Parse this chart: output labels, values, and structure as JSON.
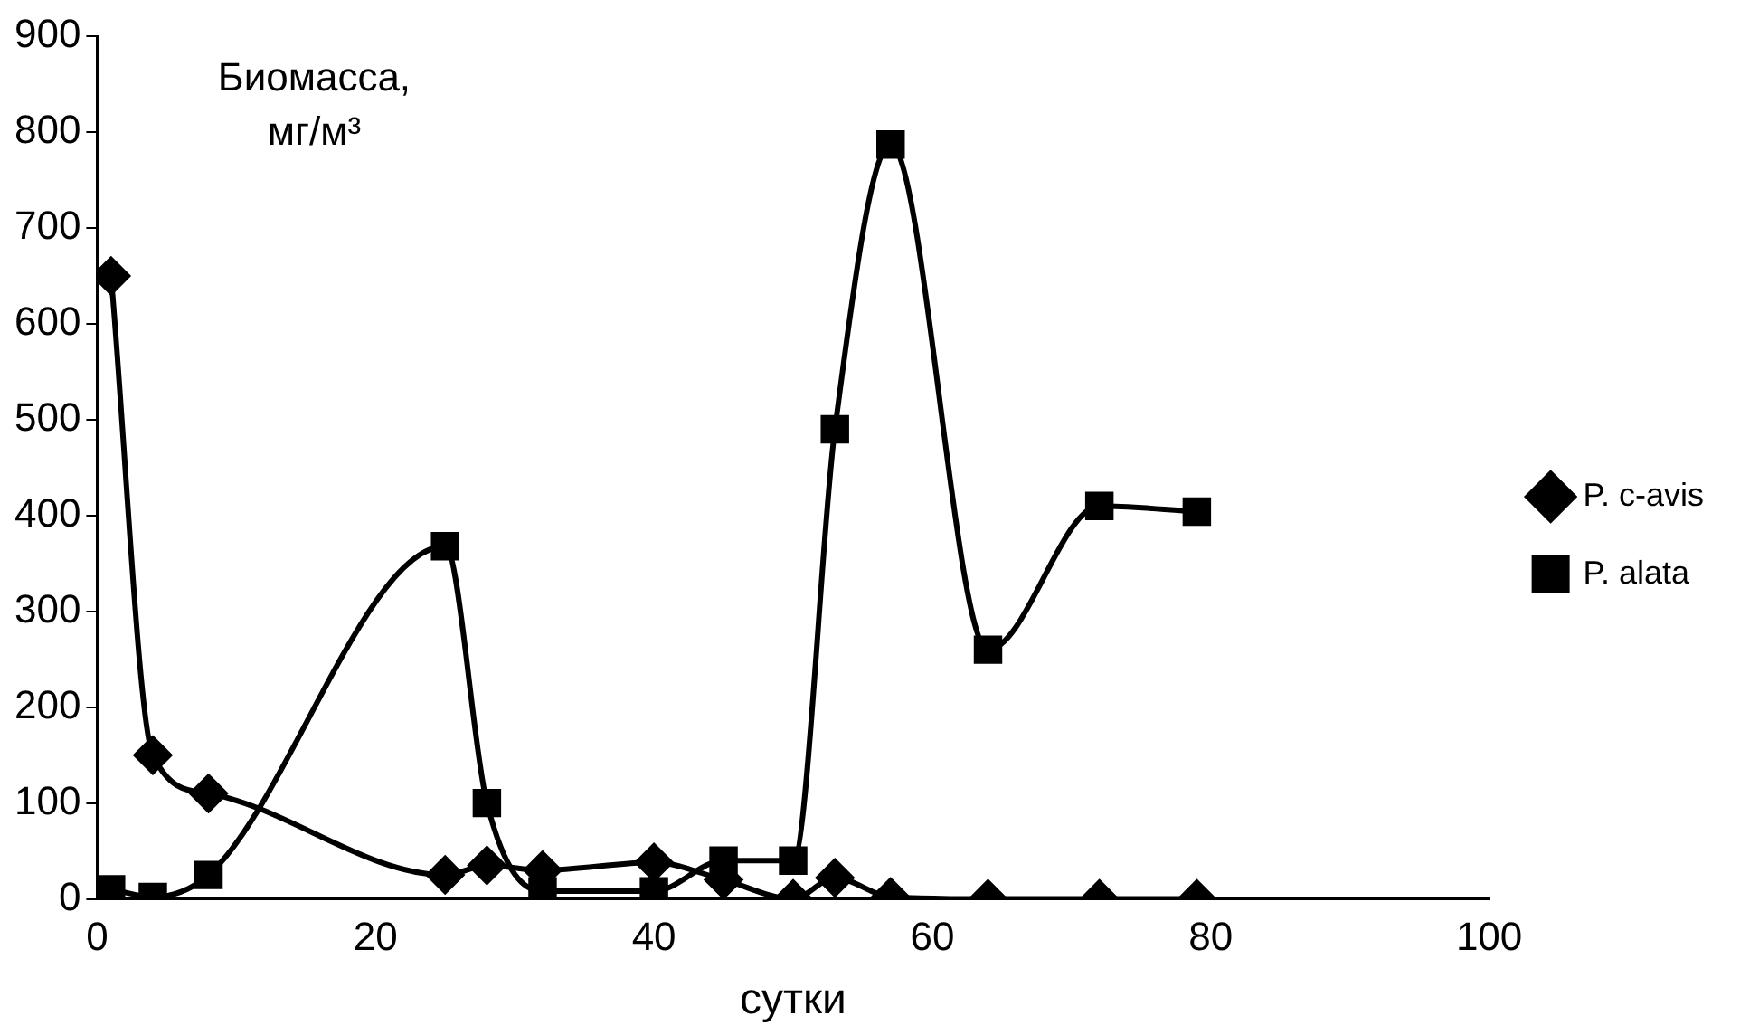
{
  "chart_data": {
    "type": "line",
    "xlabel": "сутки",
    "ylabel": "Биомасса, мг/м³",
    "legend": "right",
    "grid": false,
    "xlim": [
      0,
      100
    ],
    "xticks": [
      0,
      20,
      40,
      60,
      80,
      100
    ],
    "ylim": [
      0,
      900
    ],
    "yticks": [
      0,
      100,
      200,
      300,
      400,
      500,
      600,
      700,
      800,
      900
    ],
    "series": [
      {
        "name": "P. c-avis",
        "color": "#000000",
        "marker": "diamond",
        "x": [
          1,
          4,
          8,
          25,
          28,
          32,
          40,
          45,
          50,
          53,
          57,
          64,
          72,
          79
        ],
        "values": [
          650,
          150,
          110,
          25,
          35,
          30,
          38,
          20,
          0,
          22,
          2,
          0,
          0,
          0
        ]
      },
      {
        "name": "P. alata",
        "color": "#000000",
        "marker": "square",
        "x": [
          1,
          4,
          8,
          25,
          28,
          32,
          40,
          45,
          50,
          53,
          57,
          64,
          72,
          79
        ],
        "values": [
          10,
          2,
          25,
          368,
          100,
          8,
          8,
          40,
          40,
          490,
          787,
          260,
          410,
          404
        ]
      }
    ]
  }
}
